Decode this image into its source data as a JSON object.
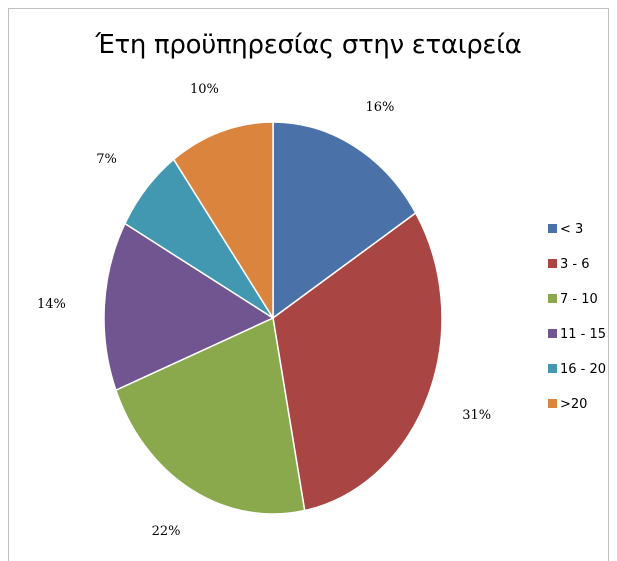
{
  "chart_data": {
    "type": "pie",
    "title": "Έτη προϋπηρεσίας στην εταιρεία",
    "categories": [
      "< 3",
      "3 - 6",
      "7 - 10",
      "11 - 15",
      "16 - 20",
      ">20"
    ],
    "values": [
      16,
      31,
      22,
      14,
      7,
      10
    ],
    "value_labels": [
      "16%",
      "31%",
      "22%",
      "14%",
      "7%",
      "10%"
    ],
    "colors": [
      "#4a72a8",
      "#a94543",
      "#8aa84c",
      "#705591",
      "#4198b0",
      "#db843d"
    ],
    "legend_position": "right"
  }
}
